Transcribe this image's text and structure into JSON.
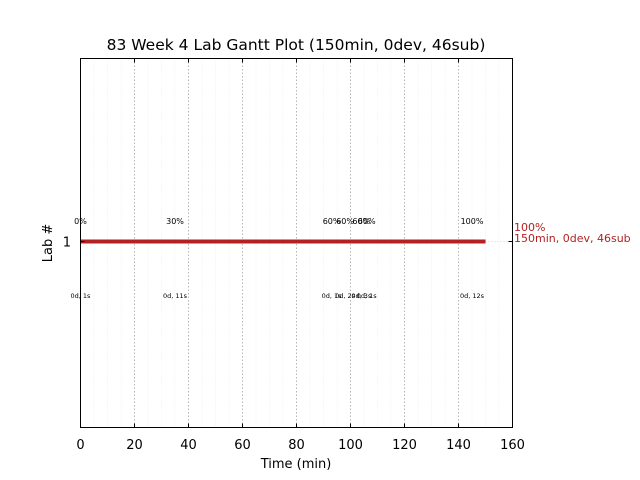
{
  "chart_data": {
    "type": "gantt",
    "title": "83 Week 4 Lab Gantt Plot (150min, 0dev, 46sub)",
    "xlabel": "Time (min)",
    "ylabel": "Lab #",
    "xlim": [
      0,
      160
    ],
    "xticks": [
      "0",
      "20",
      "40",
      "60",
      "80",
      "100",
      "120",
      "140",
      "160"
    ],
    "yticks": [
      "1"
    ],
    "grid": true,
    "bar": {
      "lab": "1",
      "start": 0,
      "end": 150,
      "color": "#b22222"
    },
    "end_label_percent": "100%",
    "end_label_summary": "150min, 0dev, 46sub",
    "progress_marks": [
      {
        "x": 0,
        "pct": "0%",
        "sub": "0d, 1s"
      },
      {
        "x": 35,
        "pct": "30%",
        "sub": "0d, 11s"
      },
      {
        "x": 93,
        "pct": "60%",
        "sub": "0d, 1s"
      },
      {
        "x": 98,
        "pct": "60%",
        "sub": "0d, 2s"
      },
      {
        "x": 104,
        "pct": "60%",
        "sub": "0d, 3s"
      },
      {
        "x": 106,
        "pct": "60%",
        "sub": "0d, 1s"
      },
      {
        "x": 145,
        "pct": "100%",
        "sub": "0d, 12s"
      }
    ]
  }
}
